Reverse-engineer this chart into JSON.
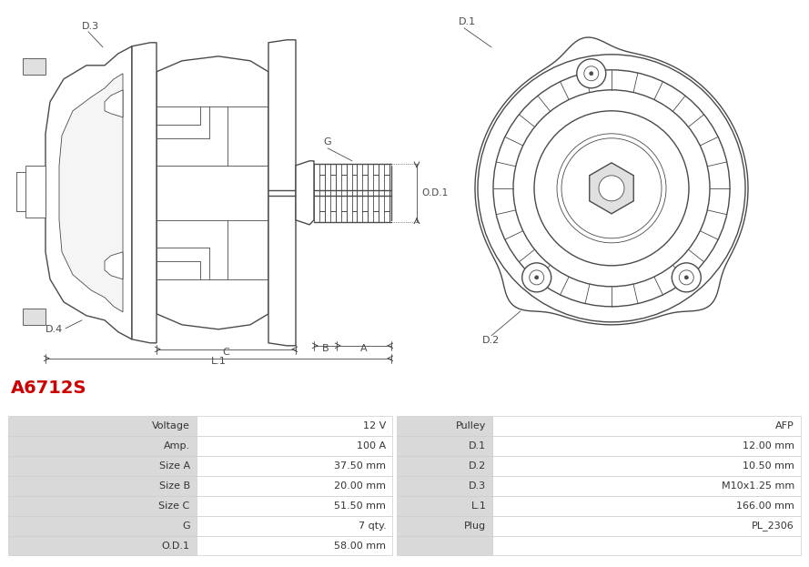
{
  "title": "A6712S",
  "title_color": "#cc0000",
  "table_headers_left": [
    "Voltage",
    "Amp.",
    "Size A",
    "Size B",
    "Size C",
    "G",
    "O.D.1"
  ],
  "table_values_left": [
    "12 V",
    "100 A",
    "37.50 mm",
    "20.00 mm",
    "51.50 mm",
    "7 qty.",
    "58.00 mm"
  ],
  "table_headers_right": [
    "Pulley",
    "D.1",
    "D.2",
    "D.3",
    "L.1",
    "Plug",
    ""
  ],
  "table_values_right": [
    "AFP",
    "12.00 mm",
    "10.50 mm",
    "M10x1.25 mm",
    "166.00 mm",
    "PL_2306",
    ""
  ],
  "bg_color": "#ffffff",
  "table_header_bg": "#d9d9d9",
  "border_color": "#cccccc",
  "line_color": "#4a4a4a",
  "label_color": "#4a4a4a",
  "dim_color": "#4a4a4a"
}
